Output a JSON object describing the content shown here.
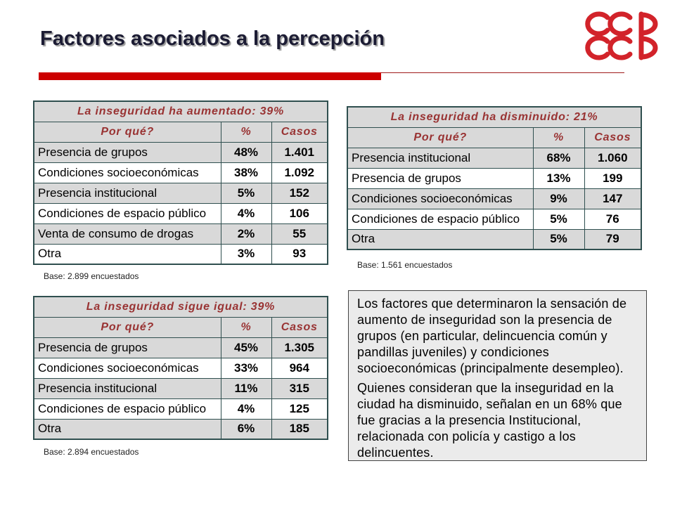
{
  "slide": {
    "title": "Factores asociados a la percepción"
  },
  "logo": {
    "icon": "ccb-logo-icon",
    "color": "#d2232a"
  },
  "colors": {
    "accent_red": "#cc0000",
    "header_text": "#993333",
    "table_border": "#2f4f4f",
    "shaded_row": "#d9d9d9",
    "note_background": "#ebebeb"
  },
  "tables": [
    {
      "title": "La inseguridad ha aumentado: 39%",
      "headers": [
        "Por qué?",
        "%",
        "Casos"
      ],
      "rows": [
        [
          "Presencia de grupos",
          "48%",
          "1.401"
        ],
        [
          "Condiciones socioeconómicas",
          "38%",
          "1.092"
        ],
        [
          "Presencia institucional",
          "5%",
          "152"
        ],
        [
          "Condiciones de espacio público",
          "4%",
          "106"
        ],
        [
          "Venta de consumo de drogas",
          "2%",
          "55"
        ],
        [
          "Otra",
          "3%",
          "93"
        ]
      ],
      "base": "Base: 2.899 encuestados"
    },
    {
      "title": "La inseguridad ha disminuido: 21%",
      "headers": [
        "Por qué?",
        "%",
        "Casos"
      ],
      "rows": [
        [
          "Presencia institucional",
          "68%",
          "1.060"
        ],
        [
          "Presencia de grupos",
          "13%",
          "199"
        ],
        [
          "Condiciones socioeconómicas",
          "9%",
          "147"
        ],
        [
          "Condiciones de espacio público",
          "5%",
          "76"
        ],
        [
          "Otra",
          "5%",
          "79"
        ]
      ],
      "base": "Base: 1.561 encuestados"
    },
    {
      "title": "La inseguridad sigue igual: 39%",
      "headers": [
        "Por qué?",
        "%",
        "Casos"
      ],
      "rows": [
        [
          "Presencia de grupos",
          "45%",
          "1.305"
        ],
        [
          "Condiciones socioeconómicas",
          "33%",
          "964"
        ],
        [
          "Presencia institucional",
          "11%",
          "315"
        ],
        [
          "Condiciones de espacio público",
          "4%",
          "125"
        ],
        [
          "Otra",
          "6%",
          "185"
        ]
      ],
      "base": "Base: 2.894 encuestados"
    }
  ],
  "note": {
    "paragraphs": [
      "Los factores que determinaron la sensación de aumento de inseguridad son la presencia de grupos (en particular, delincuencia común y pandillas juveniles) y condiciones socioeconómicas (principalmente desempleo).",
      "Quienes consideran que la inseguridad en la ciudad ha disminuido, señalan en un 68% que fue gracias a la presencia Institucional, relacionada con policía y castigo a los delincuentes."
    ]
  }
}
